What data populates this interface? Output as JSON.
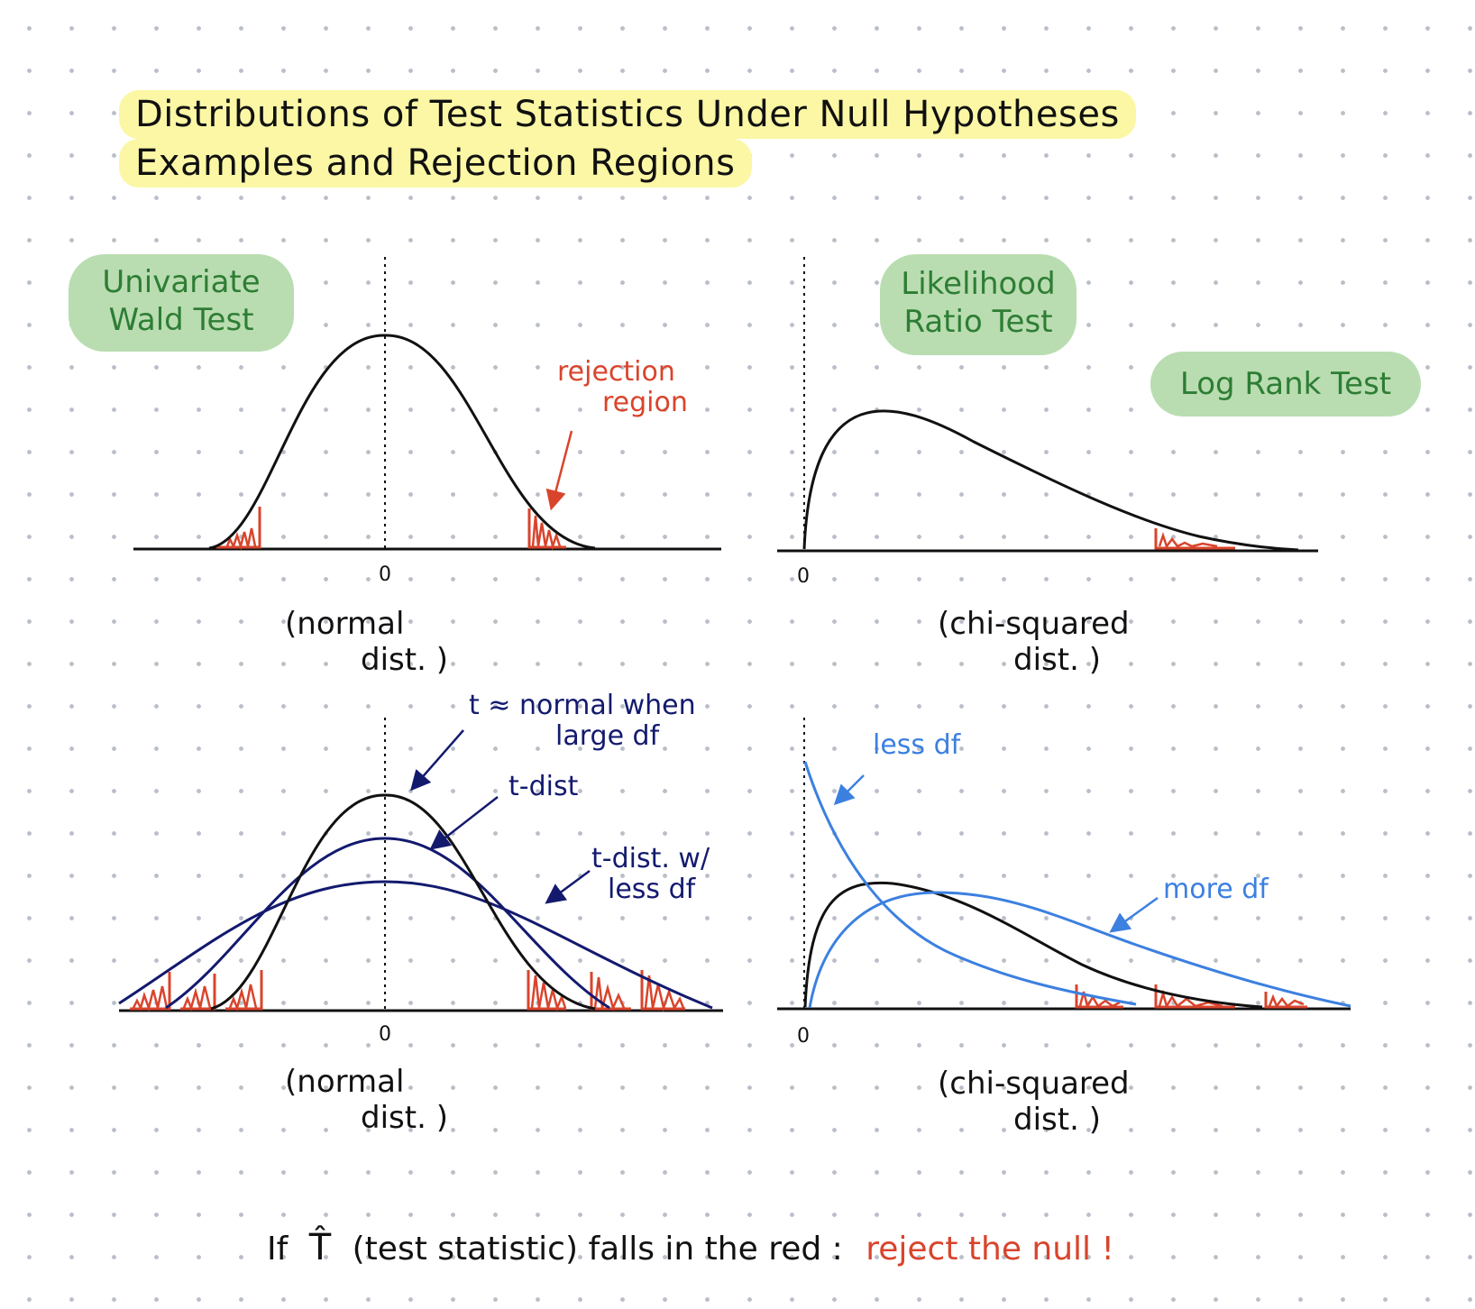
{
  "title": {
    "line1": "Distributions of Test Statistics Under Null Hypotheses",
    "line2": "Examples and Rejection Regions"
  },
  "badges": {
    "wald": [
      "Univariate",
      "Wald Test"
    ],
    "likelihood": [
      "Likelihood",
      "Ratio Test"
    ],
    "logrank": "Log Rank Test"
  },
  "panels": {
    "top_left": {
      "zero": "0",
      "caption": [
        "(normal",
        "dist. )"
      ],
      "annotation": [
        "rejection",
        "region"
      ]
    },
    "top_right": {
      "zero": "0",
      "caption": [
        "(chi-squared",
        "dist. )"
      ]
    },
    "bottom_left": {
      "zero": "0",
      "caption": [
        "(normal",
        "dist. )"
      ],
      "annotations": {
        "normal": [
          "t ≈ normal when",
          "large df"
        ],
        "tdist": "t-dist",
        "tdist_less": [
          "t-dist. w/",
          "less df"
        ]
      }
    },
    "bottom_right": {
      "zero": "0",
      "caption": [
        "(chi-squared",
        "dist. )"
      ],
      "annotations": {
        "less_df": "less df",
        "more_df": "more df"
      }
    }
  },
  "footer": {
    "prefix": "If",
    "symbol": "T̂",
    "middle": "(test statistic) falls in the red :",
    "conclusion": "reject the null !"
  },
  "colors": {
    "highlight": "#fbf7a5",
    "badge": "#b9ddb0",
    "badge_text": "#2e7d35",
    "rejection": "#d9442c",
    "t_curves": "#131a6e",
    "chi_alt": "#3c80e0"
  }
}
